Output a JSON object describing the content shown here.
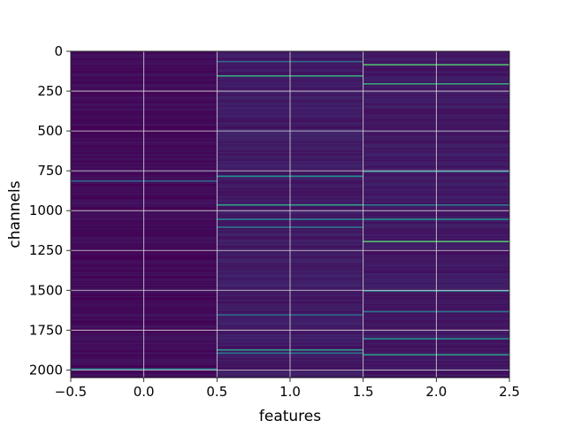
{
  "chart_data": {
    "type": "heatmap",
    "title": "",
    "xlabel": "features",
    "ylabel": "channels",
    "xlim": [
      -0.5,
      2.5
    ],
    "ylim": [
      2048,
      0
    ],
    "y_inverted": true,
    "grid": true,
    "colormap": "viridis",
    "x_ticks": [
      -0.5,
      0.0,
      0.5,
      1.0,
      1.5,
      2.0,
      2.5
    ],
    "x_tick_labels": [
      "−0.5",
      "0.0",
      "0.5",
      "1.0",
      "1.5",
      "2.0",
      "2.5"
    ],
    "y_ticks": [
      0,
      250,
      500,
      750,
      1000,
      1250,
      1500,
      1750,
      2000
    ],
    "y_tick_labels": [
      "0",
      "250",
      "500",
      "750",
      "1000",
      "1250",
      "1500",
      "1750",
      "2000"
    ],
    "columns": [
      {
        "feature": 0,
        "base_level": 0.03,
        "highlights": [
          {
            "channel": 810,
            "level": 0.35
          },
          {
            "channel": 1990,
            "level": 0.45
          }
        ]
      },
      {
        "feature": 1,
        "base_level": 0.08,
        "highlights": [
          {
            "channel": 60,
            "level": 0.35
          },
          {
            "channel": 150,
            "level": 0.6
          },
          {
            "channel": 780,
            "level": 0.5
          },
          {
            "channel": 960,
            "level": 0.55
          },
          {
            "channel": 1050,
            "level": 0.45
          },
          {
            "channel": 1100,
            "level": 0.4
          },
          {
            "channel": 1650,
            "level": 0.35
          },
          {
            "channel": 1870,
            "level": 0.55
          },
          {
            "channel": 1890,
            "level": 0.4
          }
        ]
      },
      {
        "feature": 2,
        "base_level": 0.07,
        "highlights": [
          {
            "channel": 80,
            "level": 0.7
          },
          {
            "channel": 200,
            "level": 0.6
          },
          {
            "channel": 750,
            "level": 0.45
          },
          {
            "channel": 960,
            "level": 0.4
          },
          {
            "channel": 1050,
            "level": 0.5
          },
          {
            "channel": 1190,
            "level": 0.7
          },
          {
            "channel": 1500,
            "level": 0.45
          },
          {
            "channel": 1630,
            "level": 0.4
          },
          {
            "channel": 1800,
            "level": 0.5
          },
          {
            "channel": 1900,
            "level": 0.55
          }
        ]
      }
    ]
  }
}
